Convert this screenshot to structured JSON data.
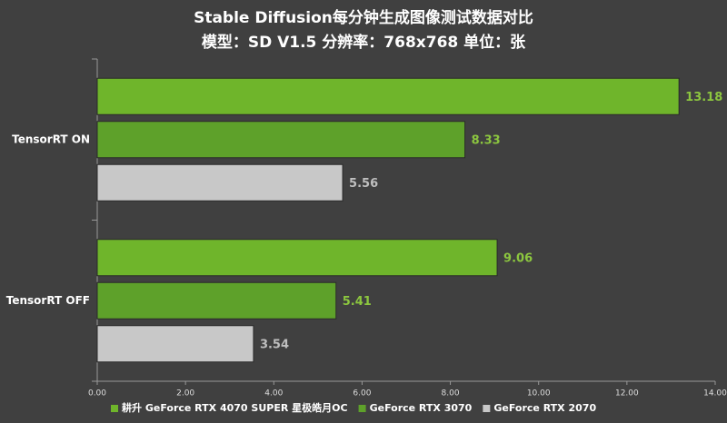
{
  "chart_data": {
    "type": "bar",
    "orientation": "horizontal",
    "title": "Stable Diffusion每分钟生成图像测试数据对比",
    "subtitle": "模型：SD V1.5  分辨率：768x768 单位：张",
    "categories": [
      "TensorRT ON",
      "TensorRT OFF"
    ],
    "series": [
      {
        "name": "耕升 GeForce RTX 4070 SUPER 星极皓月OC",
        "color": "#6fb52b",
        "label_color": "#8cc63f",
        "values": [
          13.18,
          9.06
        ]
      },
      {
        "name": "GeForce RTX 3070",
        "color": "#5ea12a",
        "label_color": "#8cc63f",
        "values": [
          8.33,
          5.41
        ]
      },
      {
        "name": "GeForce RTX 2070",
        "color": "#c8c8c8",
        "label_color": "#bfbfbf",
        "values": [
          5.56,
          3.54
        ]
      }
    ],
    "xlim": [
      0,
      14
    ],
    "xticks": [
      {
        "value": 0,
        "label": "0.00"
      },
      {
        "value": 2,
        "label": "2.00"
      },
      {
        "value": 4,
        "label": "4.00"
      },
      {
        "value": 6,
        "label": "6.00"
      },
      {
        "value": 8,
        "label": "8.00"
      },
      {
        "value": 10,
        "label": "10.00"
      },
      {
        "value": 12,
        "label": "12.00"
      },
      {
        "value": 14,
        "label": "14.00"
      }
    ],
    "grid": false,
    "legend": "bottom"
  }
}
